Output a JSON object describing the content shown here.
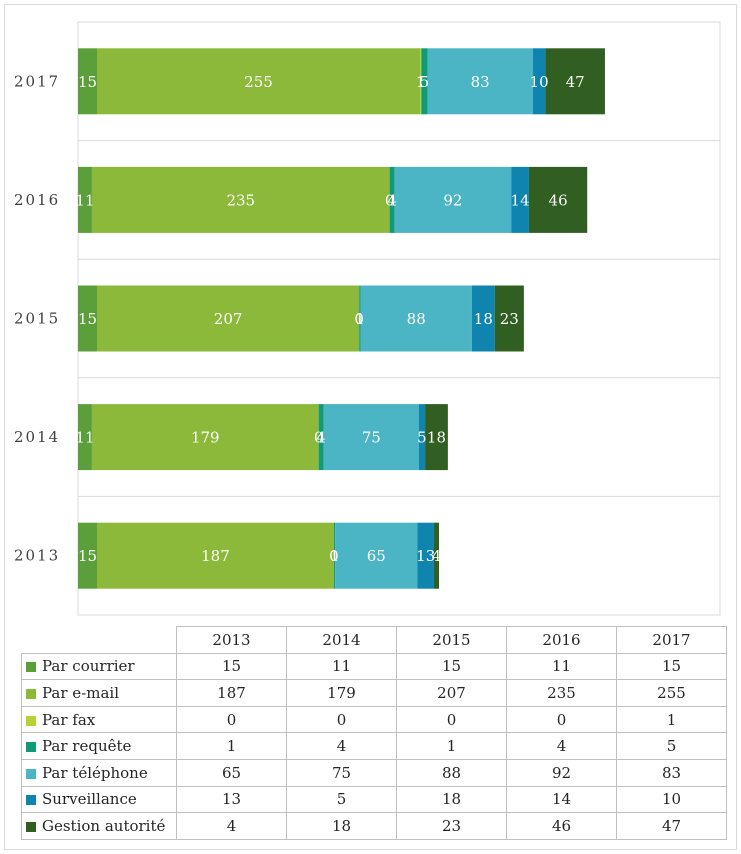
{
  "chart_data": {
    "type": "bar",
    "orientation": "horizontal",
    "stacked": true,
    "categories": [
      "2017",
      "2016",
      "2015",
      "2014",
      "2013"
    ],
    "series": [
      {
        "name": "Par courrier",
        "color": "#5b9f3a",
        "values": [
          15,
          11,
          15,
          11,
          15
        ]
      },
      {
        "name": "Par e-mail",
        "color": "#8cb93a",
        "values": [
          255,
          235,
          207,
          179,
          187
        ]
      },
      {
        "name": "Par fax",
        "color": "#b5d334",
        "values": [
          1,
          0,
          0,
          0,
          0
        ]
      },
      {
        "name": "Par requête",
        "color": "#0f9a78",
        "values": [
          5,
          4,
          1,
          4,
          1
        ]
      },
      {
        "name": "Par téléphone",
        "color": "#4bb5c5",
        "values": [
          83,
          92,
          88,
          75,
          65
        ]
      },
      {
        "name": "Surveillance",
        "color": "#0e84ae",
        "values": [
          10,
          14,
          18,
          5,
          13
        ]
      },
      {
        "name": "Gestion autorité",
        "color": "#315f22",
        "values": [
          47,
          46,
          23,
          18,
          4
        ]
      }
    ],
    "data_labels": [
      [
        "15",
        "255",
        "1",
        "5",
        "83",
        "10",
        "47"
      ],
      [
        "11",
        "235",
        "0",
        "4",
        "92",
        "14",
        "46"
      ],
      [
        "15",
        "207",
        "0",
        "1",
        "88",
        "18",
        "23"
      ],
      [
        "11",
        "179",
        "0",
        "4",
        "75",
        "5",
        "18"
      ],
      [
        "15",
        "187",
        "0",
        "1",
        "65",
        "13",
        "4"
      ]
    ],
    "xlim": [
      0,
      460
    ],
    "grid": "horizontal-separators",
    "legend": "data-table-below"
  },
  "table": {
    "years": [
      "2013",
      "2014",
      "2015",
      "2016",
      "2017"
    ],
    "rows": [
      {
        "label": "Par courrier",
        "values": [
          "15",
          "11",
          "15",
          "11",
          "15"
        ]
      },
      {
        "label": "Par e-mail",
        "values": [
          "187",
          "179",
          "207",
          "235",
          "255"
        ]
      },
      {
        "label": "Par fax",
        "values": [
          "0",
          "0",
          "0",
          "0",
          "1"
        ]
      },
      {
        "label": "Par requête",
        "values": [
          "1",
          "4",
          "1",
          "4",
          "5"
        ]
      },
      {
        "label": "Par téléphone",
        "values": [
          "65",
          "75",
          "88",
          "92",
          "83"
        ]
      },
      {
        "label": "Surveillance",
        "values": [
          "13",
          "5",
          "18",
          "14",
          "10"
        ]
      },
      {
        "label": "Gestion autorité",
        "values": [
          "4",
          "18",
          "23",
          "46",
          "47"
        ]
      }
    ]
  }
}
